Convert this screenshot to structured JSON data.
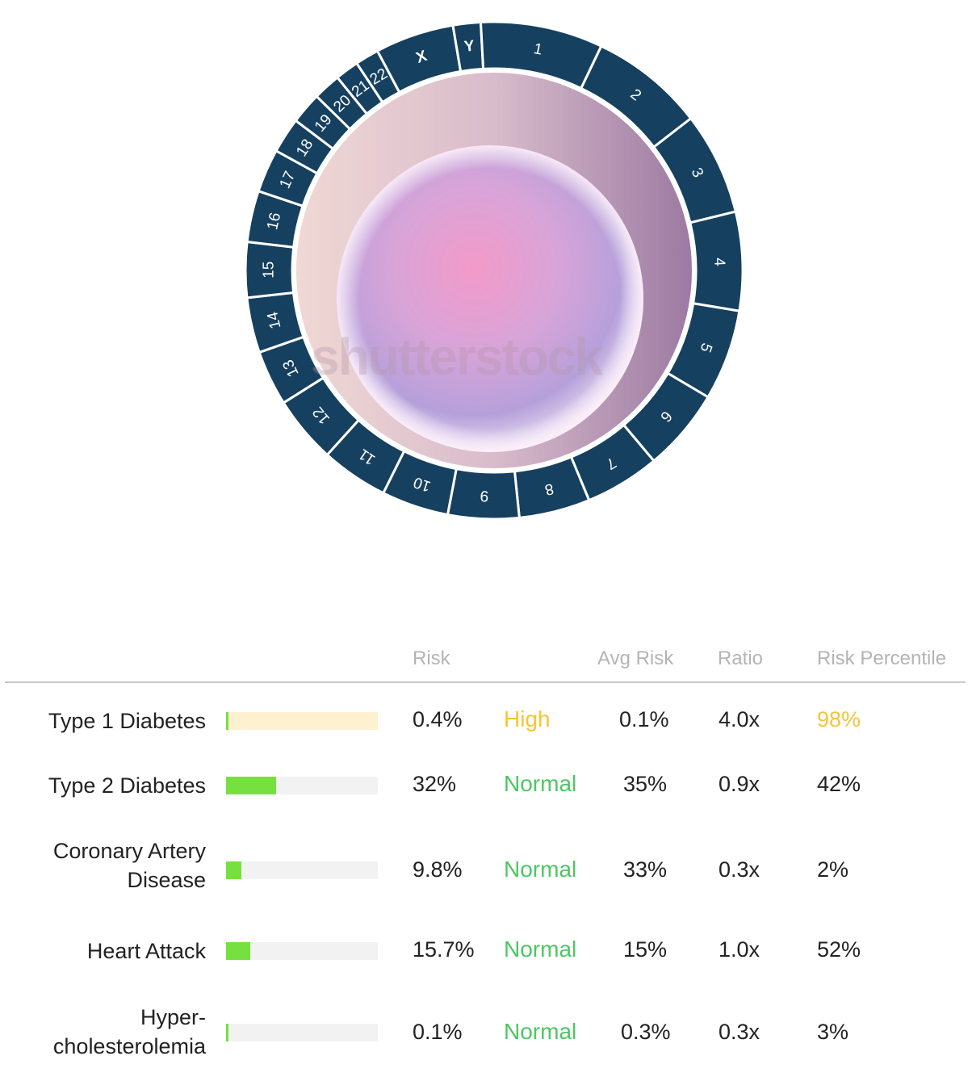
{
  "wheel": {
    "segments": [
      "X",
      "Y",
      "1",
      "2",
      "3",
      "4",
      "5",
      "6",
      "7",
      "8",
      "9",
      "10",
      "11",
      "12",
      "13",
      "14",
      "15",
      "16",
      "17",
      "18",
      "19",
      "20",
      "21",
      "22"
    ],
    "ring_color": "#16405f",
    "divider_color": "#ffffff",
    "watermark": "shutterstock"
  },
  "table": {
    "headers": {
      "risk": "Risk",
      "avg_risk": "Avg Risk",
      "ratio": "Ratio",
      "percentile": "Risk Percentile"
    },
    "colors": {
      "high": "#f7c436",
      "normal": "#4cc764",
      "track_high": "#fdf1cf",
      "track_normal": "#f2f2f2",
      "fill_normal": "#76e040"
    },
    "rows": [
      {
        "condition": "Type 1 Diabetes",
        "risk": "0.4%",
        "status": "High",
        "avg_risk": "0.1%",
        "ratio": "4.0x",
        "percentile": "98%",
        "risk_fraction": 0.004,
        "highlight": true
      },
      {
        "condition": "Type 2 Diabetes",
        "risk": "32%",
        "status": "Normal",
        "avg_risk": "35%",
        "ratio": "0.9x",
        "percentile": "42%",
        "risk_fraction": 0.32,
        "highlight": false
      },
      {
        "condition_lines": [
          "Coronary Artery",
          "Disease"
        ],
        "risk": "9.8%",
        "status": "Normal",
        "avg_risk": "33%",
        "ratio": "0.3x",
        "percentile": "2%",
        "risk_fraction": 0.098,
        "highlight": false
      },
      {
        "condition": "Heart Attack",
        "risk": "15.7%",
        "status": "Normal",
        "avg_risk": "15%",
        "ratio": "1.0x",
        "percentile": "52%",
        "risk_fraction": 0.157,
        "highlight": false
      },
      {
        "condition_lines": [
          "Hyper-",
          "cholesterolemia"
        ],
        "risk": "0.1%",
        "status": "Normal",
        "avg_risk": "0.3%",
        "ratio": "0.3x",
        "percentile": "3%",
        "risk_fraction": 0.001,
        "highlight": false
      }
    ]
  }
}
